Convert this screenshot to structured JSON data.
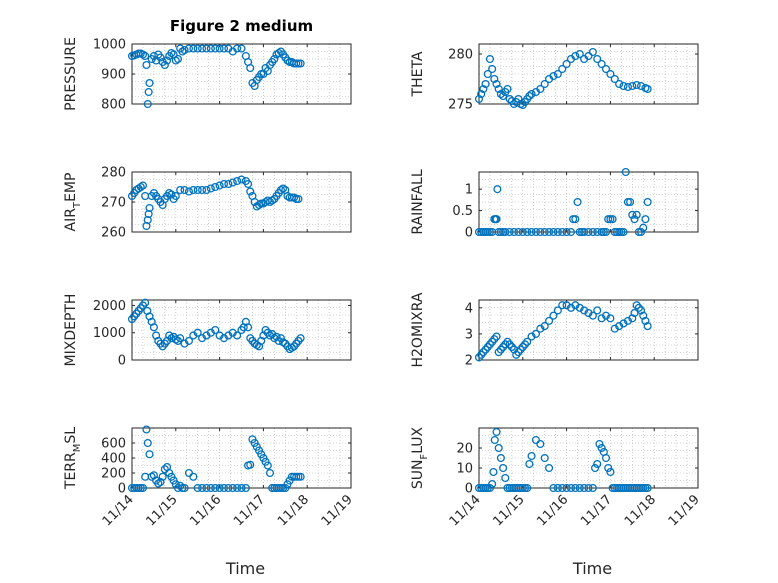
{
  "colors": {
    "marker": "#0072BD",
    "axis": "#262626",
    "grid": "#b0b0b0"
  },
  "x_tick_labels": [
    "11/14",
    "11/15",
    "11/16",
    "11/17",
    "11/18",
    "11/19"
  ],
  "xlabel": "Time",
  "chart_data": [
    {
      "type": "scatter",
      "title": "Figure 2 medium",
      "ylabel": "PRESSURE",
      "ylabel_sub": "",
      "ylim": [
        800,
        1000
      ],
      "yticks": [
        800,
        900,
        1000
      ],
      "xlim": [
        0,
        5
      ],
      "x": [
        0.0,
        0.05,
        0.1,
        0.15,
        0.2,
        0.25,
        0.3,
        0.33,
        0.36,
        0.38,
        0.4,
        0.45,
        0.5,
        0.55,
        0.6,
        0.65,
        0.7,
        0.75,
        0.8,
        0.85,
        0.9,
        0.95,
        1.0,
        1.05,
        1.1,
        1.15,
        1.2,
        1.3,
        1.4,
        1.5,
        1.6,
        1.7,
        1.8,
        1.9,
        2.0,
        2.1,
        2.2,
        2.3,
        2.4,
        2.5,
        2.6,
        2.65,
        2.7,
        2.75,
        2.8,
        2.85,
        2.9,
        2.95,
        3.0,
        3.05,
        3.1,
        3.15,
        3.2,
        3.25,
        3.3,
        3.35,
        3.4,
        3.45,
        3.5,
        3.55,
        3.6,
        3.65,
        3.7,
        3.75,
        3.8,
        3.85
      ],
      "y": [
        960,
        962,
        965,
        968,
        968,
        965,
        960,
        930,
        800,
        840,
        870,
        950,
        960,
        945,
        965,
        955,
        940,
        930,
        945,
        960,
        970,
        965,
        945,
        950,
        985,
        975,
        980,
        985,
        985,
        985,
        985,
        985,
        985,
        985,
        985,
        985,
        985,
        975,
        985,
        985,
        960,
        940,
        920,
        870,
        860,
        880,
        890,
        900,
        900,
        920,
        910,
        930,
        940,
        950,
        965,
        970,
        975,
        965,
        955,
        945,
        940,
        940,
        935,
        935,
        935,
        935
      ]
    },
    {
      "type": "scatter",
      "title": "",
      "ylabel": "THETA",
      "ylabel_sub": "",
      "ylim": [
        275,
        281
      ],
      "yticks": [
        275,
        280
      ],
      "xlim": [
        0,
        5
      ],
      "x": [
        0.0,
        0.05,
        0.1,
        0.15,
        0.2,
        0.25,
        0.3,
        0.35,
        0.4,
        0.45,
        0.5,
        0.55,
        0.6,
        0.65,
        0.7,
        0.75,
        0.8,
        0.85,
        0.9,
        0.95,
        1.0,
        1.05,
        1.1,
        1.15,
        1.2,
        1.3,
        1.4,
        1.5,
        1.6,
        1.7,
        1.8,
        1.9,
        2.0,
        2.1,
        2.2,
        2.3,
        2.4,
        2.5,
        2.6,
        2.7,
        2.8,
        2.9,
        3.0,
        3.1,
        3.2,
        3.3,
        3.4,
        3.5,
        3.6,
        3.7,
        3.8,
        3.85
      ],
      "y": [
        275.5,
        276,
        276.5,
        277,
        278,
        279.5,
        278.5,
        277.5,
        277,
        276.5,
        276,
        275.8,
        276.2,
        276.5,
        275.5,
        275.3,
        275.0,
        275.2,
        275.5,
        275.0,
        274.9,
        275.2,
        275.5,
        275.8,
        276,
        276.2,
        276.5,
        277,
        277.5,
        277.8,
        278,
        278.5,
        279,
        279.5,
        279.8,
        280,
        279.5,
        279.8,
        280.2,
        279.5,
        279,
        278.5,
        278,
        277.5,
        277,
        276.8,
        276.7,
        276.8,
        276.9,
        276.8,
        276.6,
        276.5
      ]
    },
    {
      "type": "scatter",
      "title": "",
      "ylabel": "AIR",
      "ylabel_sub": "T",
      "ylabel_suffix": "EMP",
      "ylim": [
        260,
        280
      ],
      "yticks": [
        260,
        270,
        280
      ],
      "xlim": [
        0,
        5
      ],
      "x": [
        0.0,
        0.05,
        0.1,
        0.15,
        0.2,
        0.25,
        0.3,
        0.33,
        0.36,
        0.38,
        0.4,
        0.45,
        0.5,
        0.55,
        0.6,
        0.65,
        0.7,
        0.75,
        0.8,
        0.85,
        0.9,
        0.95,
        1.0,
        1.1,
        1.2,
        1.3,
        1.4,
        1.5,
        1.6,
        1.7,
        1.8,
        1.9,
        2.0,
        2.1,
        2.2,
        2.3,
        2.4,
        2.5,
        2.6,
        2.65,
        2.7,
        2.75,
        2.8,
        2.85,
        2.9,
        2.95,
        3.0,
        3.05,
        3.1,
        3.15,
        3.2,
        3.25,
        3.3,
        3.35,
        3.4,
        3.45,
        3.5,
        3.55,
        3.6,
        3.65,
        3.7,
        3.75,
        3.8
      ],
      "y": [
        272,
        273,
        274,
        274.5,
        275,
        275.5,
        272,
        262,
        264,
        266,
        268,
        272,
        273,
        272,
        271,
        270,
        269,
        271,
        272,
        273,
        272.5,
        271,
        272,
        274,
        274,
        273.5,
        274,
        274,
        274,
        274,
        274.5,
        275,
        275.5,
        276,
        276,
        276.5,
        277,
        277.5,
        277,
        276,
        273.5,
        272,
        270,
        268.5,
        269,
        269.5,
        269.5,
        270,
        270.5,
        270,
        270.5,
        271,
        272,
        273,
        274,
        274.5,
        274,
        272,
        271.5,
        271.5,
        271.5,
        271,
        271
      ]
    },
    {
      "type": "scatter",
      "title": "",
      "ylabel": "RAINFALL",
      "ylabel_sub": "",
      "ylim": [
        0,
        1.4
      ],
      "yticks": [
        0,
        0.5,
        1
      ],
      "ytick_labels": [
        "0",
        "0.5",
        "1"
      ],
      "xlim": [
        0,
        5
      ],
      "x": [
        0.0,
        0.05,
        0.1,
        0.15,
        0.2,
        0.25,
        0.3,
        0.35,
        0.38,
        0.4,
        0.42,
        0.45,
        0.5,
        0.55,
        0.6,
        0.7,
        0.8,
        0.9,
        1.0,
        1.1,
        1.2,
        1.3,
        1.4,
        1.5,
        1.6,
        1.7,
        1.8,
        1.9,
        2.0,
        2.1,
        2.15,
        2.2,
        2.25,
        2.3,
        2.35,
        2.4,
        2.5,
        2.6,
        2.7,
        2.8,
        2.85,
        2.9,
        2.95,
        3.0,
        3.05,
        3.1,
        3.15,
        3.2,
        3.25,
        3.3,
        3.35,
        3.4,
        3.45,
        3.5,
        3.55,
        3.6,
        3.65,
        3.7,
        3.75,
        3.8,
        3.85
      ],
      "y": [
        0,
        0,
        0,
        0,
        0,
        0,
        0,
        0.3,
        0.3,
        0.3,
        1.0,
        0,
        0,
        0,
        0,
        0,
        0,
        0,
        0,
        0,
        0,
        0,
        0,
        0,
        0,
        0,
        0,
        0,
        0,
        0,
        0.3,
        0.3,
        0.7,
        0,
        0,
        0,
        0,
        0,
        0,
        0,
        0,
        0,
        0.3,
        0.3,
        0.3,
        0,
        0,
        0,
        0,
        0,
        1.4,
        0.7,
        0.7,
        0.4,
        0.3,
        0.4,
        0,
        0,
        0.1,
        0.3,
        0.7
      ]
    },
    {
      "type": "scatter",
      "title": "",
      "ylabel": "MIXDEPTH",
      "ylabel_sub": "",
      "ylim": [
        0,
        2200
      ],
      "yticks": [
        0,
        1000,
        2000
      ],
      "xlim": [
        0,
        5
      ],
      "x": [
        0.0,
        0.05,
        0.1,
        0.15,
        0.2,
        0.25,
        0.3,
        0.35,
        0.4,
        0.45,
        0.5,
        0.55,
        0.6,
        0.65,
        0.7,
        0.75,
        0.8,
        0.85,
        0.9,
        0.95,
        1.0,
        1.05,
        1.1,
        1.2,
        1.3,
        1.4,
        1.5,
        1.6,
        1.7,
        1.8,
        1.9,
        2.0,
        2.1,
        2.2,
        2.3,
        2.4,
        2.5,
        2.55,
        2.6,
        2.65,
        2.7,
        2.75,
        2.8,
        2.85,
        2.9,
        2.95,
        3.0,
        3.05,
        3.1,
        3.15,
        3.2,
        3.25,
        3.3,
        3.35,
        3.4,
        3.45,
        3.5,
        3.55,
        3.6,
        3.65,
        3.7,
        3.75,
        3.8,
        3.85
      ],
      "y": [
        1500,
        1600,
        1700,
        1800,
        1900,
        2000,
        2100,
        1800,
        1600,
        1400,
        1200,
        900,
        700,
        600,
        500,
        600,
        700,
        900,
        800,
        850,
        750,
        700,
        800,
        600,
        700,
        900,
        1000,
        800,
        900,
        1000,
        1100,
        900,
        800,
        900,
        1000,
        900,
        1100,
        1200,
        1400,
        1200,
        800,
        700,
        600,
        550,
        500,
        700,
        900,
        1100,
        1000,
        900,
        950,
        800,
        850,
        700,
        800,
        650,
        600,
        500,
        400,
        450,
        500,
        600,
        700,
        800
      ]
    },
    {
      "type": "scatter",
      "title": "",
      "ylabel": "H2OMIXRA",
      "ylabel_sub": "",
      "ylim": [
        2,
        4.3
      ],
      "yticks": [
        2,
        3,
        4
      ],
      "xlim": [
        0,
        5
      ],
      "x": [
        0.0,
        0.05,
        0.1,
        0.15,
        0.2,
        0.25,
        0.3,
        0.35,
        0.4,
        0.45,
        0.5,
        0.55,
        0.6,
        0.65,
        0.7,
        0.75,
        0.8,
        0.85,
        0.9,
        0.95,
        1.0,
        1.05,
        1.1,
        1.2,
        1.3,
        1.4,
        1.5,
        1.6,
        1.7,
        1.8,
        1.9,
        2.0,
        2.1,
        2.2,
        2.3,
        2.4,
        2.5,
        2.6,
        2.7,
        2.8,
        2.9,
        3.0,
        3.1,
        3.2,
        3.3,
        3.4,
        3.5,
        3.55,
        3.6,
        3.65,
        3.7,
        3.75,
        3.8,
        3.85
      ],
      "y": [
        2.1,
        2.2,
        2.3,
        2.4,
        2.5,
        2.6,
        2.7,
        2.8,
        2.9,
        2.3,
        2.4,
        2.5,
        2.6,
        2.7,
        2.6,
        2.5,
        2.4,
        2.2,
        2.3,
        2.4,
        2.5,
        2.6,
        2.7,
        2.9,
        3.0,
        3.2,
        3.3,
        3.5,
        3.7,
        3.9,
        4.1,
        4.1,
        4.0,
        4.1,
        4.0,
        3.9,
        3.8,
        3.7,
        3.9,
        3.6,
        3.7,
        3.6,
        3.2,
        3.3,
        3.4,
        3.5,
        3.6,
        3.8,
        4.1,
        4.0,
        3.9,
        3.7,
        3.5,
        3.3
      ]
    },
    {
      "type": "scatter",
      "title": "",
      "ylabel": "TERR",
      "ylabel_sub": "M",
      "ylabel_suffix": "SL",
      "ylim": [
        0,
        800
      ],
      "yticks": [
        0,
        200,
        400,
        600
      ],
      "xlim": [
        0,
        5
      ],
      "x": [
        0.0,
        0.05,
        0.1,
        0.15,
        0.2,
        0.25,
        0.3,
        0.33,
        0.36,
        0.4,
        0.45,
        0.5,
        0.55,
        0.6,
        0.65,
        0.7,
        0.75,
        0.8,
        0.85,
        0.9,
        0.95,
        1.0,
        1.05,
        1.1,
        1.15,
        1.2,
        1.3,
        1.4,
        1.5,
        1.6,
        1.7,
        1.8,
        1.9,
        2.0,
        2.1,
        2.2,
        2.3,
        2.4,
        2.5,
        2.6,
        2.65,
        2.7,
        2.75,
        2.8,
        2.85,
        2.9,
        2.95,
        3.0,
        3.05,
        3.1,
        3.15,
        3.2,
        3.25,
        3.3,
        3.35,
        3.4,
        3.45,
        3.5,
        3.55,
        3.6,
        3.65,
        3.7,
        3.75,
        3.8,
        3.85
      ],
      "y": [
        0,
        0,
        0,
        0,
        0,
        0,
        150,
        780,
        600,
        450,
        150,
        170,
        100,
        60,
        80,
        150,
        250,
        280,
        200,
        150,
        100,
        50,
        0,
        30,
        0,
        0,
        200,
        150,
        0,
        0,
        0,
        0,
        0,
        0,
        0,
        0,
        0,
        0,
        0,
        0,
        300,
        310,
        650,
        600,
        550,
        500,
        450,
        400,
        350,
        300,
        200,
        0,
        0,
        0,
        0,
        0,
        0,
        0,
        50,
        100,
        150,
        150,
        150,
        150,
        150
      ]
    },
    {
      "type": "scatter",
      "title": "",
      "ylabel": "SUN",
      "ylabel_sub": "F",
      "ylabel_suffix": "LUX",
      "ylim": [
        0,
        30
      ],
      "yticks": [
        0,
        10,
        20
      ],
      "xlim": [
        0,
        5
      ],
      "x": [
        0.0,
        0.05,
        0.1,
        0.15,
        0.2,
        0.25,
        0.3,
        0.33,
        0.36,
        0.4,
        0.45,
        0.5,
        0.55,
        0.6,
        0.65,
        0.7,
        0.75,
        0.8,
        0.85,
        0.9,
        0.95,
        1.0,
        1.05,
        1.1,
        1.15,
        1.2,
        1.3,
        1.4,
        1.5,
        1.6,
        1.7,
        1.8,
        1.9,
        2.0,
        2.1,
        2.2,
        2.3,
        2.4,
        2.5,
        2.6,
        2.65,
        2.7,
        2.75,
        2.8,
        2.85,
        2.9,
        2.95,
        3.0,
        3.05,
        3.1,
        3.15,
        3.2,
        3.25,
        3.3,
        3.35,
        3.4,
        3.45,
        3.5,
        3.55,
        3.6,
        3.65,
        3.7,
        3.75,
        3.8,
        3.85
      ],
      "y": [
        0,
        0,
        0,
        0,
        0,
        0,
        2,
        8,
        24,
        28,
        20,
        15,
        10,
        5,
        0,
        0,
        0,
        0,
        0,
        0,
        0,
        0,
        0,
        0,
        12,
        16,
        24,
        22,
        15,
        10,
        0,
        0,
        0,
        0,
        0,
        0,
        0,
        0,
        0,
        0,
        10,
        12,
        22,
        20,
        18,
        15,
        10,
        8,
        0,
        0,
        0,
        0,
        0,
        0,
        0,
        0,
        0,
        0,
        0,
        0,
        0,
        0,
        0,
        0,
        0
      ]
    }
  ]
}
